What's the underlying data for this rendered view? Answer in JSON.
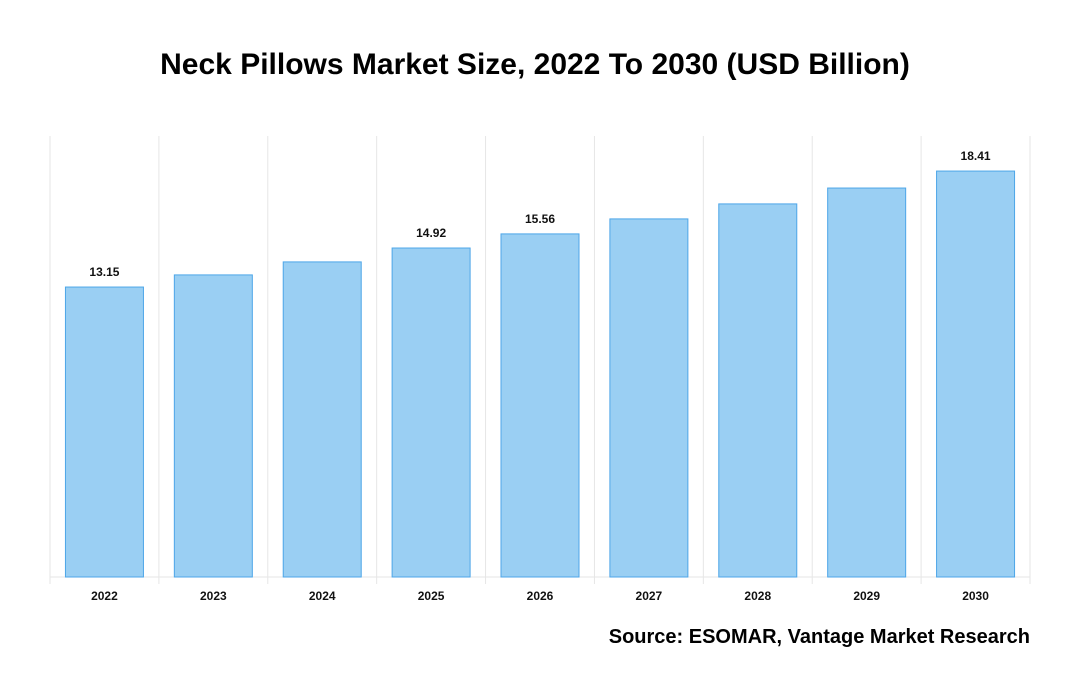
{
  "chart_data": {
    "type": "bar",
    "title": "Neck Pillows Market Size, 2022 To 2030 (USD Billion)",
    "xlabel": "",
    "ylabel": "",
    "categories": [
      "2022",
      "2023",
      "2024",
      "2025",
      "2026",
      "2027",
      "2028",
      "2029",
      "2030"
    ],
    "values": [
      13.15,
      13.7,
      14.29,
      14.92,
      15.56,
      16.24,
      16.92,
      17.64,
      18.41
    ],
    "data_labels": [
      "13.15",
      "",
      "",
      "14.92",
      "15.56",
      "",
      "",
      "",
      "18.41"
    ],
    "ylim": [
      0,
      20
    ],
    "grid": "vertical",
    "legend": "none",
    "colors": {
      "bar_fill": "#9acff3",
      "bar_stroke": "#4da6e8",
      "grid": "#e6e6e6"
    }
  },
  "source": "Source: ESOMAR, Vantage Market Research"
}
